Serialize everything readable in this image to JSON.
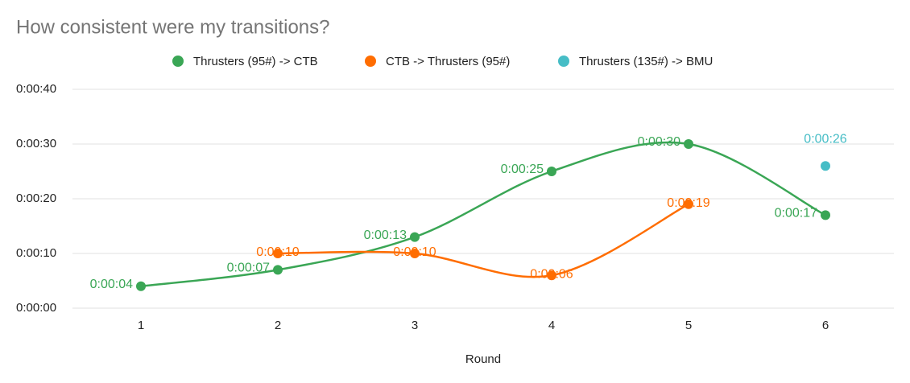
{
  "chart_data": {
    "type": "line",
    "title": "How consistent were my transitions?",
    "x_label": "Round",
    "categories": [
      "1",
      "2",
      "3",
      "4",
      "5",
      "6"
    ],
    "series": [
      {
        "name": "Thrusters (95#) -> CTB",
        "color": "#3aa655",
        "values": [
          4,
          7,
          13,
          25,
          30,
          17
        ],
        "value_labels": [
          "0:00:04",
          "0:00:07",
          "0:00:13",
          "0:00:25",
          "0:00:30",
          "0:00:17"
        ]
      },
      {
        "name": "CTB -> Thrusters (95#)",
        "color": "#ff6d01",
        "values": [
          null,
          10,
          10,
          6,
          19,
          null
        ],
        "value_labels": [
          null,
          "0:00:10",
          "0:00:10",
          "0:00:06",
          "0:00:19",
          null
        ]
      },
      {
        "name": "Thrusters (135#) -> BMU",
        "color": "#46bdc6",
        "values": [
          null,
          null,
          null,
          null,
          null,
          26
        ],
        "value_labels": [
          null,
          null,
          null,
          null,
          null,
          "0:00:26"
        ]
      }
    ],
    "ylim": [
      0,
      40
    ],
    "yticks": [
      {
        "value": 0,
        "label": "0:00:00"
      },
      {
        "value": 10,
        "label": "0:00:10"
      },
      {
        "value": 20,
        "label": "0:00:20"
      },
      {
        "value": 30,
        "label": "0:00:30"
      },
      {
        "value": 40,
        "label": "0:00:40"
      }
    ],
    "grid": true,
    "smooth": true,
    "legend": "top"
  }
}
